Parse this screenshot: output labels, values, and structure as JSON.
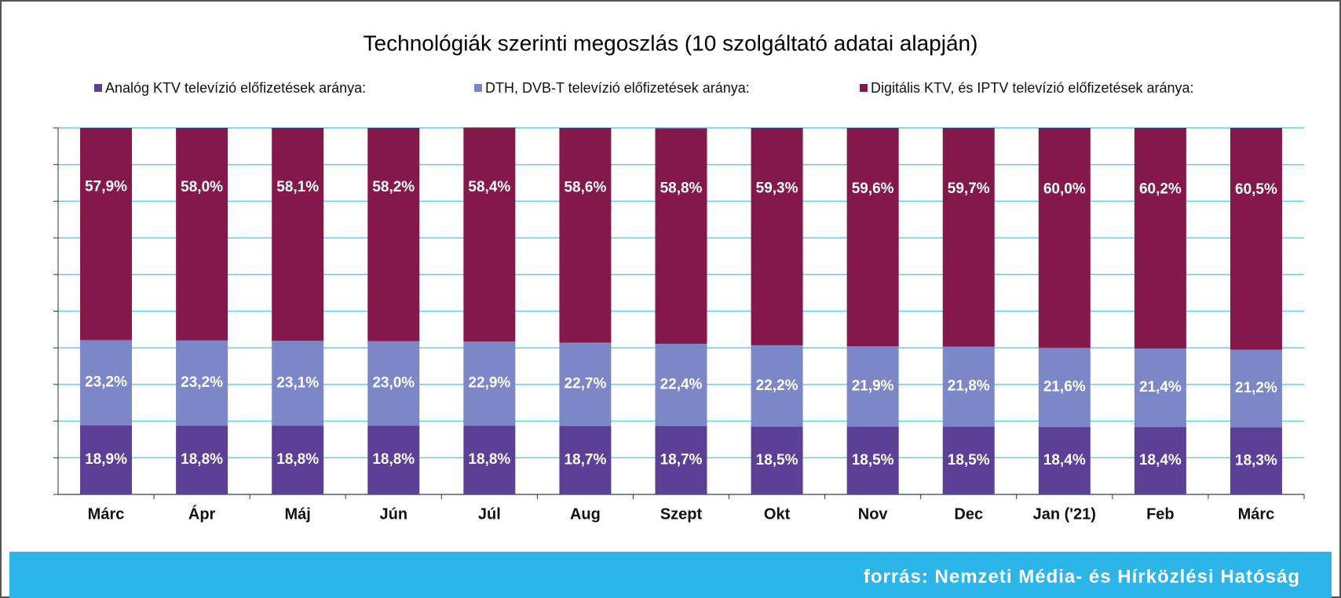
{
  "chart_data": {
    "type": "stacked_bar",
    "title": "Technológiák szerinti megoszlás (10 szolgáltató adatai alapján)",
    "source": "forrás: Nemzeti Média- és Hírközlési Hatóság",
    "categories": [
      "Márc",
      "Ápr",
      "Máj",
      "Jún",
      "Júl",
      "Aug",
      "Szept",
      "Okt",
      "Nov",
      "Dec",
      "Jan ('21)",
      "Feb",
      "Márc"
    ],
    "ylim": [
      0,
      100
    ],
    "yticks": [
      0,
      10,
      20,
      30,
      40,
      50,
      60,
      70,
      80,
      90,
      100
    ],
    "grid": true,
    "series": [
      {
        "name": "Analóg KTV televízió előfizetések aránya:",
        "color": "#5c3f97",
        "values": [
          18.9,
          18.8,
          18.8,
          18.8,
          18.8,
          18.7,
          18.7,
          18.5,
          18.5,
          18.5,
          18.4,
          18.4,
          18.3
        ],
        "value_labels": [
          "18,9%",
          "18,8%",
          "18,8%",
          "18,8%",
          "18,8%",
          "18,7%",
          "18,7%",
          "18,5%",
          "18,5%",
          "18,5%",
          "18,4%",
          "18,4%",
          "18,3%"
        ]
      },
      {
        "name": "DTH, DVB-T televízió előfizetések aránya:",
        "color": "#7c87c7",
        "values": [
          23.2,
          23.2,
          23.1,
          23.0,
          22.9,
          22.7,
          22.4,
          22.2,
          21.9,
          21.8,
          21.6,
          21.4,
          21.2
        ],
        "value_labels": [
          "23,2%",
          "23,2%",
          "23,1%",
          "23,0%",
          "22,9%",
          "22,7%",
          "22,4%",
          "22,2%",
          "21,9%",
          "21,8%",
          "21,6%",
          "21,4%",
          "21,2%"
        ]
      },
      {
        "name": "Digitális KTV, és IPTV televízió előfizetések aránya:",
        "color": "#85184b",
        "values": [
          57.9,
          58.0,
          58.1,
          58.2,
          58.4,
          58.6,
          58.8,
          59.3,
          59.6,
          59.7,
          60.0,
          60.2,
          60.5
        ],
        "value_labels": [
          "57,9%",
          "58,0%",
          "58,1%",
          "58,2%",
          "58,4%",
          "58,6%",
          "58,8%",
          "59,3%",
          "59,6%",
          "59,7%",
          "60,0%",
          "60,2%",
          "60,5%"
        ]
      }
    ]
  }
}
